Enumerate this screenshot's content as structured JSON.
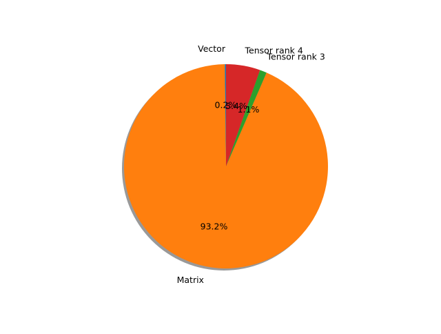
{
  "chart_data": {
    "type": "pie",
    "title": "",
    "slices": [
      {
        "label": "Vector",
        "value": 0.2,
        "pct_label": "0.2%",
        "color": "#1f77b4"
      },
      {
        "label": "Matrix",
        "value": 93.2,
        "pct_label": "93.2%",
        "color": "#ff7f0e"
      },
      {
        "label": "Tensor rank 3",
        "value": 1.1,
        "pct_label": "1.1%",
        "color": "#2ca02c"
      },
      {
        "label": "Tensor rank 4",
        "value": 5.4,
        "pct_label": "5.4%",
        "color": "#d62728"
      }
    ],
    "start_angle": "90°",
    "direction": "counterclockwise",
    "shadow": true,
    "legend": "none"
  }
}
